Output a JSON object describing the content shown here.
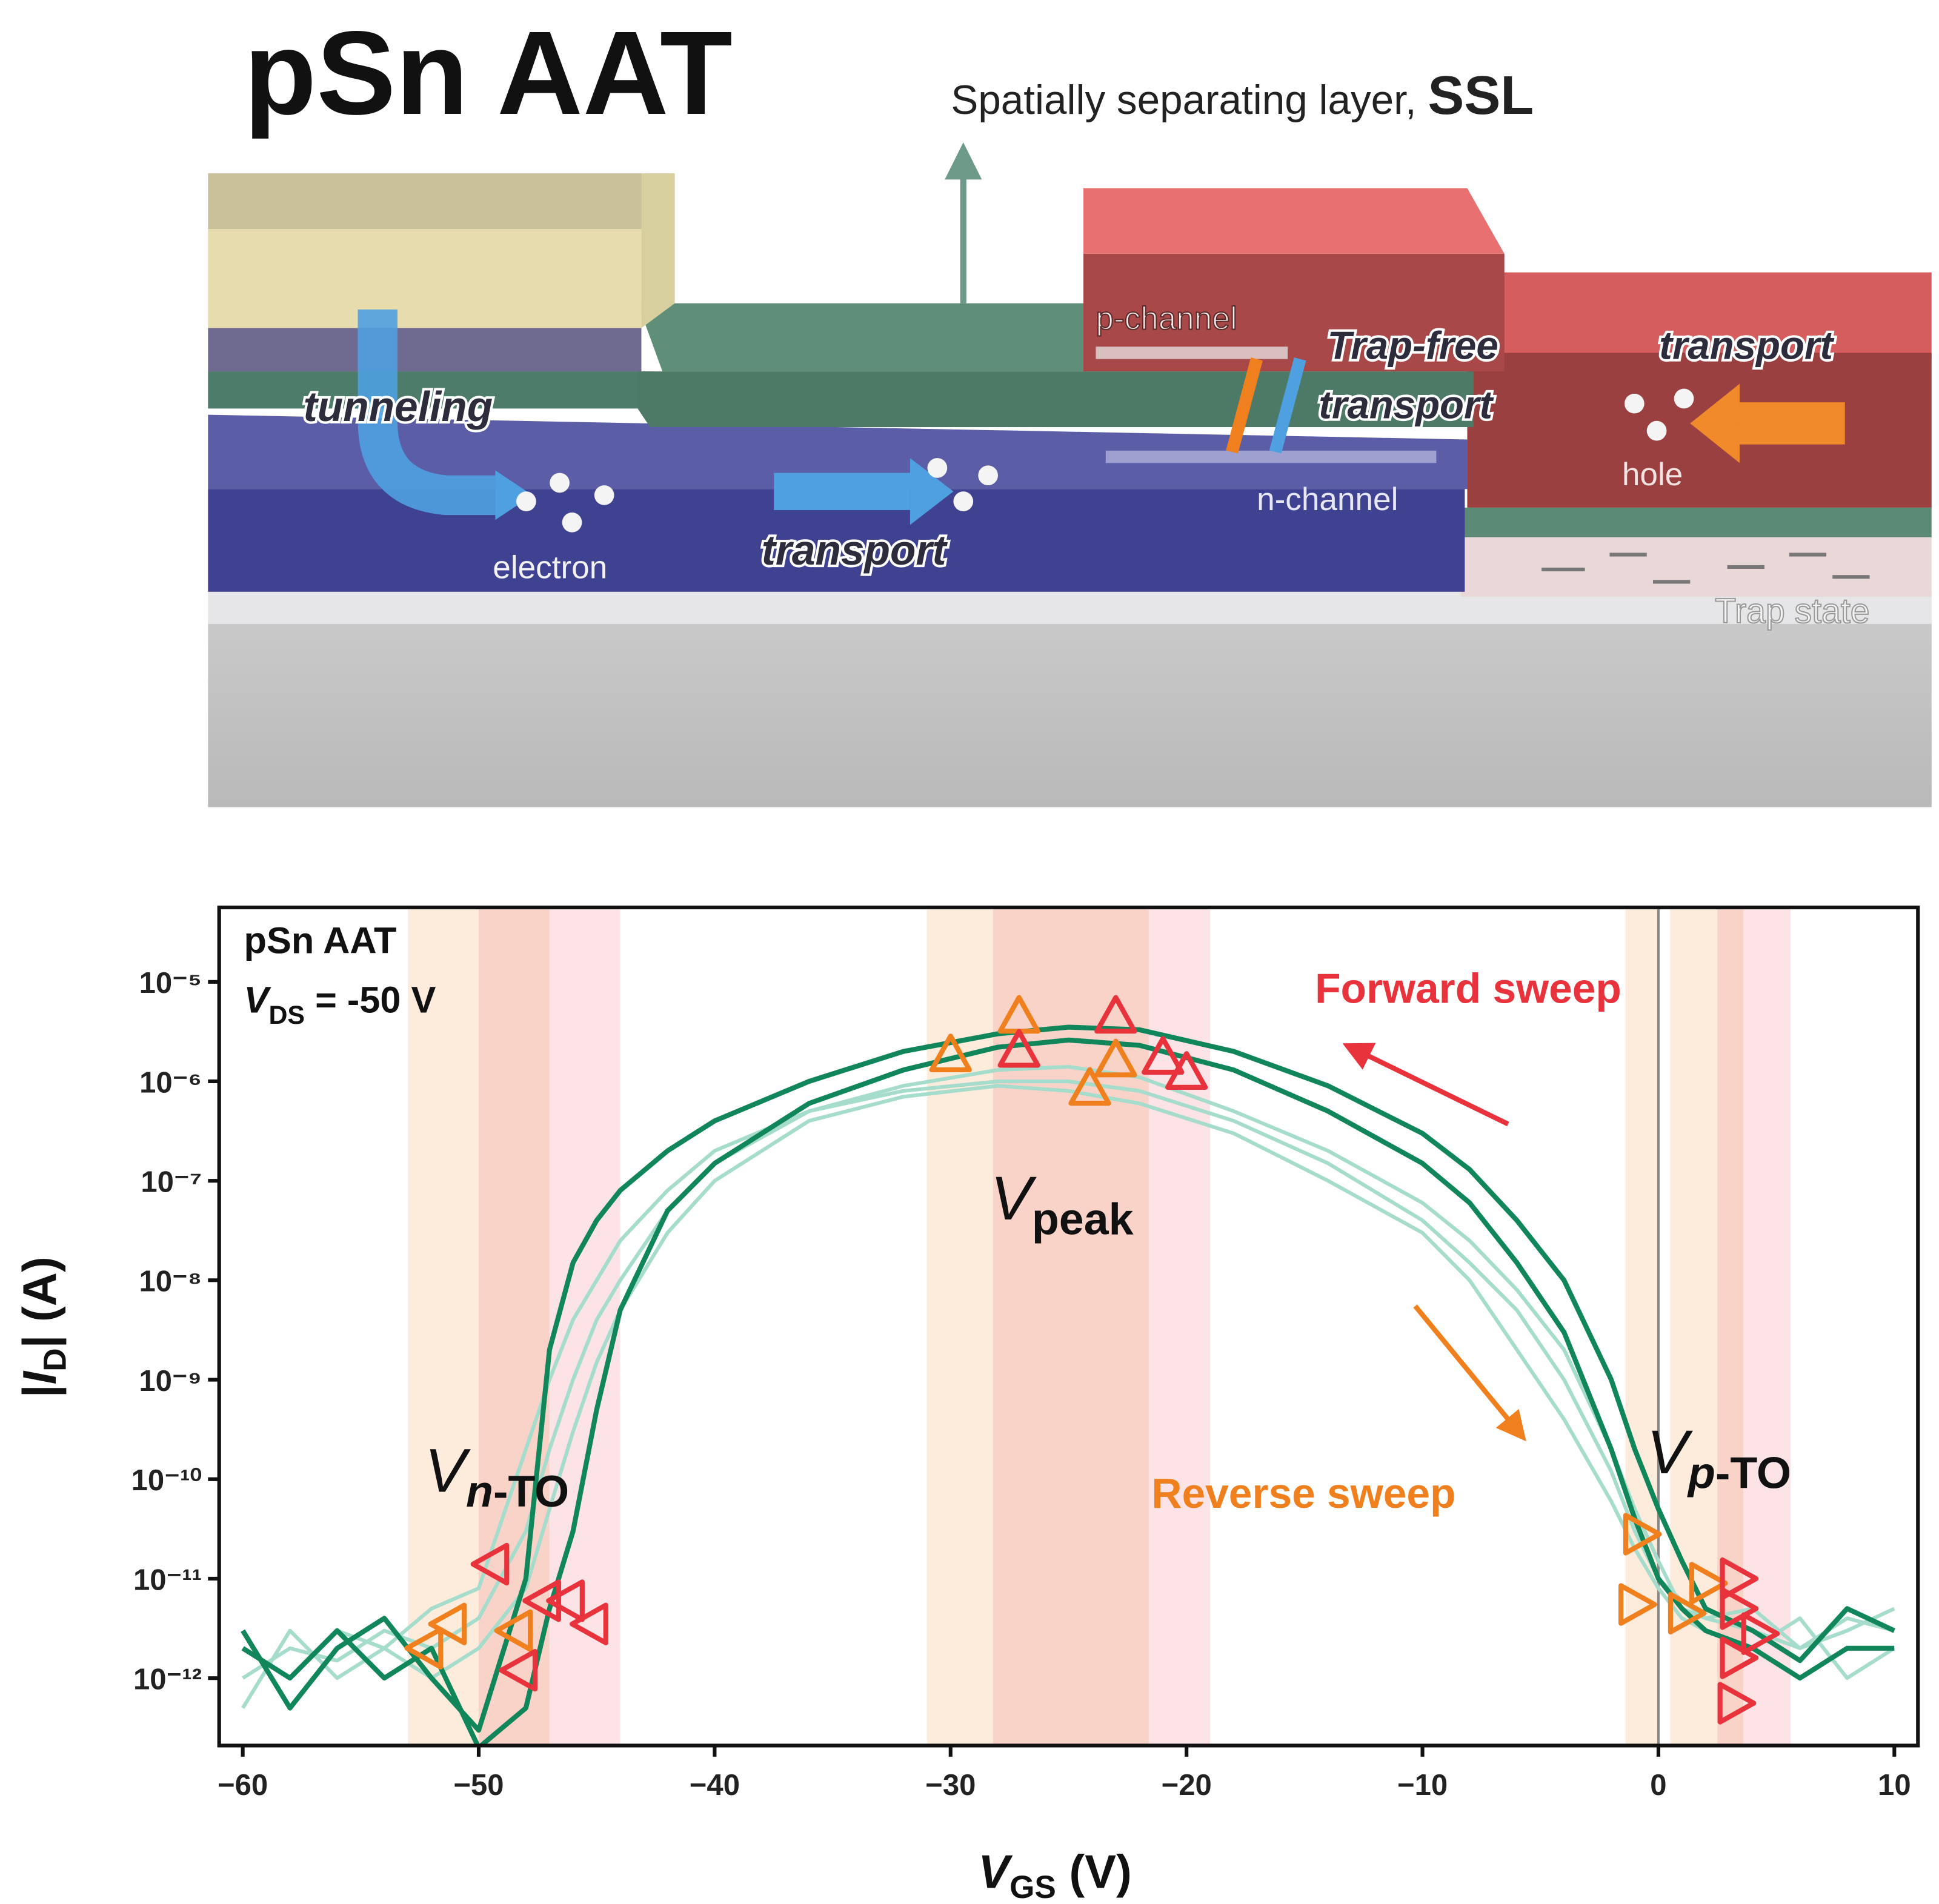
{
  "diagram": {
    "title": "pSn AAT",
    "ssl": [
      "Spatially separating layer, ",
      "SSL"
    ],
    "p_channel": "p-channel",
    "trap_free": [
      "Trap-free",
      "transport"
    ],
    "transport_right": "transport",
    "tunneling": "tunneling",
    "electron": "electron",
    "transport_mid": "transport",
    "n_channel": "n-channel",
    "hole": "hole",
    "trap_state": "Trap state"
  },
  "chart_data": {
    "type": "line",
    "log": true,
    "xlabel": [
      "V",
      "GS",
      " (V)"
    ],
    "ylabel": [
      "|",
      "I",
      "D",
      "| (A)"
    ],
    "annotations": {
      "device": "pSn AAT",
      "vds": [
        "V",
        "DS",
        " = -50 V"
      ],
      "forward": "Forward sweep",
      "reverse": "Reverse sweep",
      "vpeak": [
        "V",
        "peak"
      ],
      "vnto": [
        "V",
        "n",
        "-TO"
      ],
      "vpto": [
        "V",
        "p",
        "-TO"
      ]
    },
    "xlim": [
      -61,
      11
    ],
    "ylim": [
      2.1e-13,
      5.6e-05
    ],
    "xticks": [
      {
        "value": -60,
        "label": "−60"
      },
      {
        "value": -50,
        "label": "−50"
      },
      {
        "value": -40,
        "label": "−40"
      },
      {
        "value": -30,
        "label": "−30"
      },
      {
        "value": -20,
        "label": "−20"
      },
      {
        "value": -10,
        "label": "−10"
      },
      0,
      10
    ],
    "yticks": [
      {
        "value": 1e-12,
        "label": "10⁻¹²"
      },
      {
        "value": 1e-11,
        "label": "10⁻¹¹"
      },
      {
        "value": 1e-10,
        "label": "10⁻¹⁰"
      },
      {
        "value": 1e-09,
        "label": "10⁻⁹"
      },
      {
        "value": 1e-08,
        "label": "10⁻⁸"
      },
      {
        "value": 1e-07,
        "label": "10⁻⁷"
      },
      {
        "value": 1e-06,
        "label": "10⁻⁶"
      },
      {
        "value": 1e-05,
        "label": "10⁻⁵"
      }
    ],
    "vline": 0,
    "bands": [
      {
        "range": [
          -53,
          -50
        ],
        "color": "#fdebdc"
      },
      {
        "range": [
          -50,
          -47
        ],
        "color": "#f9d3c8"
      },
      {
        "range": [
          -47,
          -44
        ],
        "color": "#fbe3e6"
      },
      {
        "range": [
          -31,
          -28.2
        ],
        "color": "#fdebdc"
      },
      {
        "range": [
          -28.2,
          -21.6
        ],
        "color": "#f9d3c8"
      },
      {
        "range": [
          -21.6,
          -19
        ],
        "color": "#fbe3e6"
      },
      {
        "range": [
          -1.4,
          0
        ],
        "color": "#fdebdc"
      },
      {
        "range": [
          0.5,
          2.5
        ],
        "color": "#fdebdc"
      },
      {
        "range": [
          2.5,
          3.6
        ],
        "color": "#f9d3c8"
      },
      {
        "range": [
          3.6,
          5.6
        ],
        "color": "#fbe3e6"
      }
    ],
    "x": [
      -60,
      -58,
      -56,
      -54,
      -52,
      -50,
      -48,
      -47,
      -46,
      -45,
      -44,
      -42,
      -40,
      -36,
      -32,
      -28,
      -25,
      -22,
      -18,
      -14,
      -10,
      -8,
      -6,
      -4,
      -2,
      -1,
      0,
      1,
      2,
      4,
      6,
      8,
      10
    ],
    "series": [
      {
        "color": "#a6dccc",
        "values": [
          1e-12,
          2e-12,
          1.5e-12,
          3e-12,
          2e-12,
          4e-12,
          3e-11,
          2e-10,
          1e-09,
          4e-09,
          1e-08,
          5e-08,
          1.5e-07,
          5e-07,
          9e-07,
          1.3e-06,
          1.4e-06,
          1.1e-06,
          5e-07,
          2e-07,
          6e-08,
          2.5e-08,
          8e-09,
          2e-09,
          2e-10,
          5e-11,
          1.5e-11,
          5e-12,
          4e-12,
          3e-12,
          2e-12,
          4e-12,
          3e-12
        ]
      },
      {
        "color": "#a6dccc",
        "values": [
          2e-12,
          1e-12,
          3e-12,
          2e-12,
          5e-12,
          8e-12,
          2e-10,
          1e-09,
          4e-09,
          1e-08,
          2.5e-08,
          8e-08,
          2e-07,
          5e-07,
          8e-07,
          1e-06,
          1e-06,
          8e-07,
          4e-07,
          1.5e-07,
          4e-08,
          1.5e-08,
          5e-09,
          1e-09,
          1.2e-10,
          3e-11,
          1e-11,
          6e-12,
          4e-12,
          5e-12,
          2e-12,
          3e-12,
          5e-12
        ]
      },
      {
        "color": "#a6dccc",
        "values": [
          5e-13,
          3e-12,
          1e-12,
          2e-12,
          1e-12,
          2e-12,
          8e-12,
          5e-11,
          3e-10,
          1.5e-09,
          5e-09,
          3e-08,
          1e-07,
          4e-07,
          7e-07,
          9e-07,
          8e-07,
          6e-07,
          3e-07,
          1e-07,
          3e-08,
          1e-08,
          2e-09,
          4e-10,
          6e-11,
          2e-11,
          8e-12,
          4e-12,
          3e-12,
          2e-12,
          4e-12,
          1e-12,
          2e-12
        ]
      },
      {
        "color": "#11865a",
        "values": [
          3e-12,
          5e-13,
          2e-12,
          4e-12,
          1e-12,
          3e-13,
          1e-11,
          2e-09,
          1.5e-08,
          4e-08,
          8e-08,
          2e-07,
          4e-07,
          1e-06,
          2e-06,
          3e-06,
          3.5e-06,
          3.3e-06,
          2e-06,
          9e-07,
          3e-07,
          1.3e-07,
          4e-08,
          1e-08,
          1e-09,
          2e-10,
          5e-11,
          1.5e-11,
          5e-12,
          3e-12,
          1.5e-12,
          5e-12,
          3e-12
        ]
      },
      {
        "color": "#11865a",
        "values": [
          2e-12,
          1e-12,
          3e-12,
          1e-12,
          2e-12,
          2e-13,
          5e-13,
          5e-12,
          3e-11,
          5e-10,
          5e-09,
          5e-08,
          1.5e-07,
          6e-07,
          1.3e-06,
          2.2e-06,
          2.6e-06,
          2.3e-06,
          1.3e-06,
          5e-07,
          1.5e-07,
          6e-08,
          1.5e-08,
          3e-09,
          2e-10,
          4e-11,
          1e-11,
          5e-12,
          3e-12,
          2e-12,
          1e-12,
          2e-12,
          2e-12
        ]
      }
    ],
    "markers": [
      {
        "color": "#f07f1d",
        "shape": "up",
        "x": [
          -30,
          -27.1,
          -24.1,
          -23
        ],
        "values": [
          1.8e-06,
          4.4e-06,
          8.3e-07,
          1.6e-06
        ]
      },
      {
        "color": "#e8323c",
        "shape": "up",
        "x": [
          -27.1,
          -23,
          -21,
          -20
        ],
        "values": [
          2e-06,
          4.4e-06,
          1.7e-06,
          1.2e-06
        ]
      },
      {
        "color": "#f07f1d",
        "shape": "left",
        "x": [
          -52.2,
          -51.2,
          -48.4
        ],
        "values": [
          2e-12,
          3.5e-12,
          3e-12
        ]
      },
      {
        "color": "#e8323c",
        "shape": "left",
        "x": [
          -49.4,
          -47.2,
          -46.2,
          -45.2,
          -48.2
        ],
        "values": [
          1.4e-11,
          6e-12,
          6e-12,
          3.5e-12,
          1.2e-12
        ]
      },
      {
        "color": "#f07f1d",
        "shape": "right",
        "x": [
          -0.8,
          -1,
          1.1,
          2
        ],
        "values": [
          2.8e-11,
          5.5e-12,
          4.5e-12,
          9e-12
        ]
      },
      {
        "color": "#e8323c",
        "shape": "right",
        "x": [
          3.3,
          3.3,
          4.2,
          3.3,
          3.2
        ],
        "values": [
          1e-11,
          5e-12,
          2.8e-12,
          1.6e-12,
          5.6e-13
        ]
      }
    ]
  }
}
